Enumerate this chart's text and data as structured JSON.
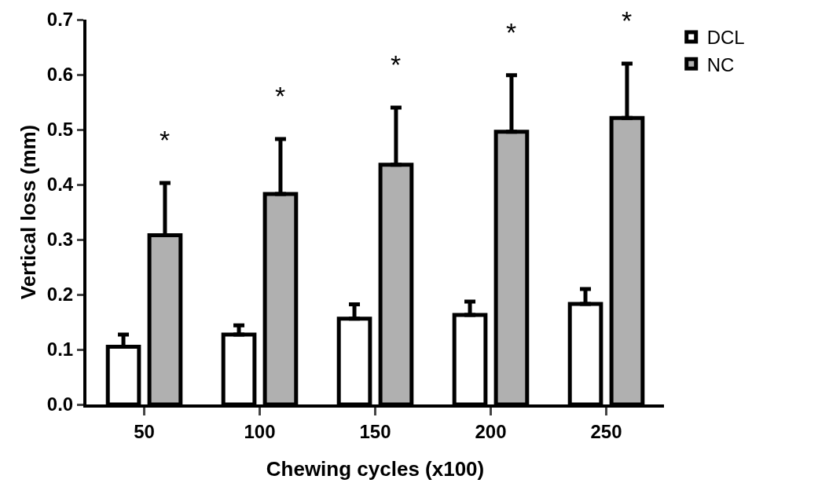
{
  "chart_data": {
    "type": "bar",
    "xlabel": "Chewing cycles (x100)",
    "ylabel": "Vertical loss (mm)",
    "categories": [
      "50",
      "100",
      "150",
      "200",
      "250"
    ],
    "series": [
      {
        "name": "DCL",
        "color": "#ffffff",
        "values": [
          0.105,
          0.127,
          0.156,
          0.163,
          0.183
        ],
        "errors": [
          [
            0.105,
            0.127
          ],
          [
            0.127,
            0.144
          ],
          [
            0.156,
            0.182
          ],
          [
            0.163,
            0.187
          ],
          [
            0.183,
            0.21
          ]
        ]
      },
      {
        "name": "NC",
        "color": "#b0b0b0",
        "values": [
          0.308,
          0.383,
          0.436,
          0.496,
          0.521
        ],
        "errors": [
          [
            0.308,
            0.403
          ],
          [
            0.383,
            0.483
          ],
          [
            0.436,
            0.54
          ],
          [
            0.496,
            0.599
          ],
          [
            0.521,
            0.62
          ]
        ]
      }
    ],
    "annotations": [
      "*",
      "*",
      "*",
      "*",
      "*"
    ],
    "ylim": [
      0,
      0.7
    ],
    "yticks": [
      {
        "value": 0,
        "label": "0.0"
      },
      0.1,
      0.2,
      0.3,
      0.4,
      0.5,
      0.6,
      0.7
    ],
    "grid": false,
    "legend": "top right"
  }
}
